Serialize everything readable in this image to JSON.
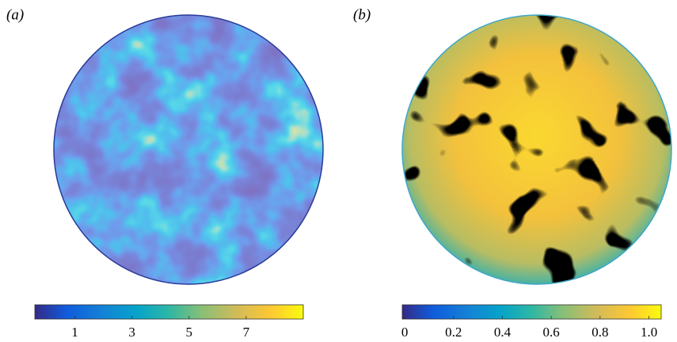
{
  "chart_data": [
    {
      "type": "colormap-field",
      "panel_label": "(a)",
      "colormap": "parula",
      "clim": [
        -0.4,
        9
      ],
      "cticks": [
        1,
        3,
        5,
        7
      ]
    },
    {
      "type": "colormap-field",
      "panel_label": "(b)",
      "colormap": "parula",
      "mask_color": "#000000",
      "clim": [
        -0.01,
        1.05
      ],
      "cticks": [
        0,
        0.2,
        0.4,
        0.6,
        0.8,
        {
          "value": 1,
          "label": "1.0"
        }
      ]
    }
  ]
}
